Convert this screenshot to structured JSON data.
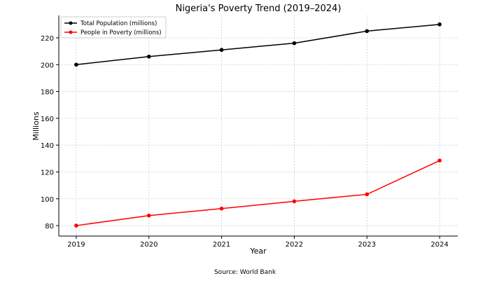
{
  "chart_data": {
    "type": "line",
    "title": "Nigeria's Poverty Trend (2019–2024)",
    "xlabel": "Year",
    "ylabel": "Millions",
    "x": [
      2019,
      2020,
      2021,
      2022,
      2023,
      2024
    ],
    "xticks": [
      "2019",
      "2020",
      "2021",
      "2022",
      "2023",
      "2024"
    ],
    "yticks": [
      80,
      100,
      120,
      140,
      160,
      180,
      200,
      220
    ],
    "xlim": [
      2018.76,
      2024.25
    ],
    "ylim": [
      72.2,
      236.7
    ],
    "grid": true,
    "legend_position": "top-left",
    "series": [
      {
        "name": "Total Population (millions)",
        "color": "#000000",
        "marker": "circle",
        "values": [
          200,
          206,
          211,
          216,
          225,
          230
        ]
      },
      {
        "name": "People in Poverty (millions)",
        "color": "#ff0000",
        "marker": "circle",
        "values": [
          80,
          87.5,
          92.7,
          98.1,
          103.3,
          128.5
        ]
      }
    ],
    "footnote": "Source: World Bank"
  }
}
